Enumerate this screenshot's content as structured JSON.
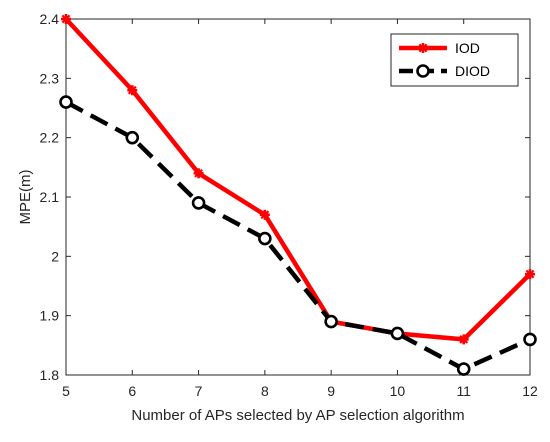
{
  "chart_data": {
    "type": "line",
    "title": "",
    "xlabel": "Number of APs selected by AP selection algorithm",
    "ylabel": "MPE(m)",
    "x": [
      5,
      6,
      7,
      8,
      9,
      10,
      11,
      12
    ],
    "xlim": [
      5,
      12
    ],
    "ylim": [
      1.8,
      2.4
    ],
    "xticks": [
      5,
      6,
      7,
      8,
      9,
      10,
      11,
      12
    ],
    "yticks": [
      1.8,
      1.9,
      2,
      2.1,
      2.2,
      2.3,
      2.4
    ],
    "ytick_labels": [
      "1.8",
      "1.9",
      "2",
      "2.1",
      "2.2",
      "2.3",
      "2.4"
    ],
    "grid": false,
    "legend_position": "top-right",
    "series": [
      {
        "name": "IOD",
        "color": "#ff0000",
        "line_style": "solid",
        "marker": "asterisk",
        "values": [
          2.4,
          2.28,
          2.14,
          2.07,
          1.89,
          1.87,
          1.86,
          1.97
        ]
      },
      {
        "name": "DIOD",
        "color": "#000000",
        "line_style": "dashed",
        "marker": "circle",
        "values": [
          2.26,
          2.2,
          2.09,
          2.03,
          1.89,
          1.87,
          1.81,
          1.86
        ]
      }
    ]
  }
}
